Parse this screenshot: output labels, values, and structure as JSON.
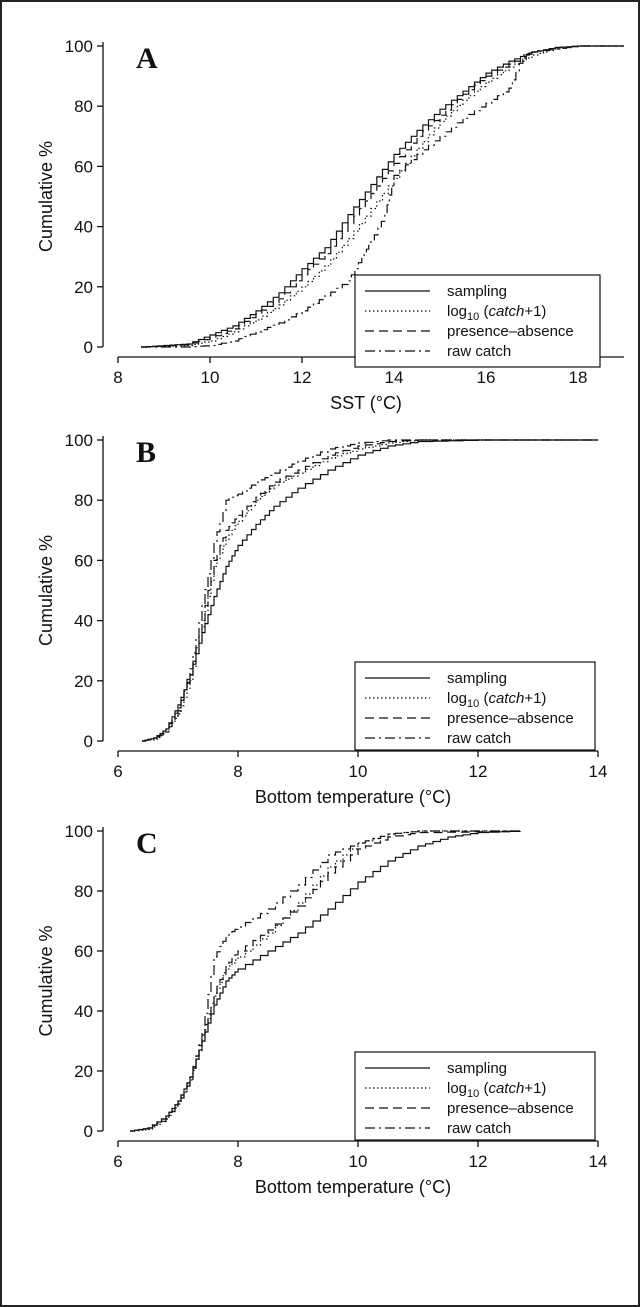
{
  "chart_data": [
    {
      "panel": "A",
      "type": "line",
      "xlabel": "SST (°C)",
      "ylabel": "Cumulative %",
      "xlim": [
        8,
        19
      ],
      "ylim": [
        0,
        100
      ],
      "xticks": [
        "8",
        "10",
        "12",
        "14",
        "16",
        "18"
      ],
      "yticks": [
        "0",
        "20",
        "40",
        "60",
        "80",
        "100"
      ],
      "legend_position": "bottom-right",
      "legend": [
        "sampling",
        "log10 (catch+1)",
        "presence–absence",
        "raw catch"
      ],
      "series": [
        {
          "name": "sampling",
          "style": "solid",
          "points": [
            [
              8.5,
              0
            ],
            [
              9,
              0.5
            ],
            [
              9.5,
              1
            ],
            [
              10,
              4
            ],
            [
              10.5,
              7
            ],
            [
              11,
              12
            ],
            [
              11.5,
              18
            ],
            [
              12,
              26
            ],
            [
              12.5,
              33
            ],
            [
              13,
              44
            ],
            [
              13.5,
              54
            ],
            [
              14,
              64
            ],
            [
              14.5,
              72
            ],
            [
              15,
              79
            ],
            [
              15.5,
              85
            ],
            [
              16,
              91
            ],
            [
              16.5,
              95
            ],
            [
              17,
              98
            ],
            [
              17.5,
              99.5
            ],
            [
              18,
              100
            ],
            [
              19,
              100
            ]
          ]
        },
        {
          "name": "log10 (catch+1)",
          "style": "dotted",
          "points": [
            [
              8.5,
              0
            ],
            [
              9,
              0.2
            ],
            [
              9.5,
              0.5
            ],
            [
              10,
              2
            ],
            [
              10.5,
              5
            ],
            [
              11,
              9
            ],
            [
              11.5,
              14
            ],
            [
              12,
              20
            ],
            [
              12.5,
              27
            ],
            [
              13,
              36
            ],
            [
              13.5,
              46
            ],
            [
              14,
              56
            ],
            [
              14.5,
              66
            ],
            [
              15,
              75
            ],
            [
              15.5,
              82
            ],
            [
              16,
              88
            ],
            [
              16.5,
              93
            ],
            [
              17,
              97
            ],
            [
              17.5,
              99
            ],
            [
              18,
              100
            ],
            [
              19,
              100
            ]
          ]
        },
        {
          "name": "presence–absence",
          "style": "dashed",
          "points": [
            [
              8.5,
              0
            ],
            [
              9,
              0.3
            ],
            [
              9.5,
              0.8
            ],
            [
              10,
              3
            ],
            [
              10.5,
              6
            ],
            [
              11,
              11
            ],
            [
              11.5,
              16
            ],
            [
              12,
              24
            ],
            [
              12.5,
              31
            ],
            [
              13,
              41
            ],
            [
              13.5,
              51
            ],
            [
              14,
              61
            ],
            [
              14.5,
              70
            ],
            [
              15,
              77
            ],
            [
              15.5,
              84
            ],
            [
              16,
              90
            ],
            [
              16.5,
              94
            ],
            [
              17,
              98
            ],
            [
              17.5,
              99.5
            ],
            [
              18,
              100
            ],
            [
              19,
              100
            ]
          ]
        },
        {
          "name": "raw catch",
          "style": "dashdot",
          "points": [
            [
              8.5,
              0
            ],
            [
              9.5,
              0
            ],
            [
              10,
              0.5
            ],
            [
              10.5,
              2
            ],
            [
              11,
              5
            ],
            [
              11.5,
              8
            ],
            [
              12,
              12
            ],
            [
              12.5,
              17
            ],
            [
              13,
              22
            ],
            [
              13.3,
              30
            ],
            [
              13.5,
              35
            ],
            [
              13.8,
              44
            ],
            [
              14,
              57
            ],
            [
              14.5,
              64
            ],
            [
              15,
              70
            ],
            [
              15.5,
              76
            ],
            [
              16,
              81
            ],
            [
              16.5,
              86
            ],
            [
              16.8,
              97
            ],
            [
              17,
              98
            ],
            [
              17.5,
              99
            ],
            [
              18,
              100
            ],
            [
              19,
              100
            ]
          ]
        }
      ]
    },
    {
      "panel": "B",
      "type": "line",
      "xlabel": "Bottom temperature (°C)",
      "ylabel": "Cumulative %",
      "xlim": [
        6,
        14
      ],
      "ylim": [
        0,
        100
      ],
      "xticks": [
        "6",
        "8",
        "10",
        "12",
        "14"
      ],
      "yticks": [
        "0",
        "20",
        "40",
        "60",
        "80",
        "100"
      ],
      "legend_position": "bottom-right",
      "legend": [
        "sampling",
        "log10 (catch+1)",
        "presence–absence",
        "raw catch"
      ],
      "series": [
        {
          "name": "sampling",
          "style": "solid",
          "points": [
            [
              6.4,
              0
            ],
            [
              6.6,
              1
            ],
            [
              6.8,
              4
            ],
            [
              7,
              12
            ],
            [
              7.2,
              22
            ],
            [
              7.4,
              36
            ],
            [
              7.6,
              48
            ],
            [
              7.8,
              58
            ],
            [
              8,
              65
            ],
            [
              8.3,
              72
            ],
            [
              8.6,
              78
            ],
            [
              9,
              84
            ],
            [
              9.5,
              90
            ],
            [
              10,
              95
            ],
            [
              10.5,
              98
            ],
            [
              11,
              99.5
            ],
            [
              12,
              100
            ],
            [
              14,
              100
            ]
          ]
        },
        {
          "name": "log10 (catch+1)",
          "style": "dotted",
          "points": [
            [
              6.4,
              0
            ],
            [
              6.6,
              0.5
            ],
            [
              6.8,
              3
            ],
            [
              7,
              9
            ],
            [
              7.2,
              20
            ],
            [
              7.4,
              38
            ],
            [
              7.6,
              58
            ],
            [
              7.8,
              67
            ],
            [
              8,
              73
            ],
            [
              8.3,
              80
            ],
            [
              8.6,
              85
            ],
            [
              9,
              89
            ],
            [
              9.5,
              94
            ],
            [
              10,
              97
            ],
            [
              10.5,
              99
            ],
            [
              11,
              100
            ],
            [
              14,
              100
            ]
          ]
        },
        {
          "name": "presence–absence",
          "style": "dashed",
          "points": [
            [
              6.4,
              0
            ],
            [
              6.6,
              1
            ],
            [
              6.8,
              4
            ],
            [
              7,
              11
            ],
            [
              7.2,
              22
            ],
            [
              7.4,
              40
            ],
            [
              7.6,
              60
            ],
            [
              7.8,
              70
            ],
            [
              8,
              75
            ],
            [
              8.3,
              81
            ],
            [
              8.6,
              86
            ],
            [
              9,
              90
            ],
            [
              9.5,
              95
            ],
            [
              10,
              98
            ],
            [
              10.5,
              99.5
            ],
            [
              11,
              100
            ],
            [
              14,
              100
            ]
          ]
        },
        {
          "name": "raw catch",
          "style": "dashdot",
          "points": [
            [
              6.4,
              0
            ],
            [
              6.6,
              1
            ],
            [
              6.8,
              3
            ],
            [
              7,
              10
            ],
            [
              7.2,
              24
            ],
            [
              7.4,
              45
            ],
            [
              7.6,
              66
            ],
            [
              7.8,
              80
            ],
            [
              8,
              82
            ],
            [
              8.3,
              86
            ],
            [
              8.6,
              89
            ],
            [
              9,
              93
            ],
            [
              9.5,
              97
            ],
            [
              10,
              99
            ],
            [
              10.5,
              100
            ],
            [
              14,
              100
            ]
          ]
        }
      ]
    },
    {
      "panel": "C",
      "type": "line",
      "xlabel": "Bottom temperature (°C)",
      "ylabel": "Cumulative %",
      "xlim": [
        6,
        14
      ],
      "ylim": [
        0,
        100
      ],
      "xticks": [
        "6",
        "8",
        "10",
        "12",
        "14"
      ],
      "yticks": [
        "0",
        "20",
        "40",
        "60",
        "80",
        "100"
      ],
      "legend_position": "bottom-right",
      "legend": [
        "sampling",
        "log10 (catch+1)",
        "presence–absence",
        "raw catch"
      ],
      "series": [
        {
          "name": "sampling",
          "style": "solid",
          "points": [
            [
              6.2,
              0
            ],
            [
              6.5,
              1
            ],
            [
              6.8,
              5
            ],
            [
              7,
              10
            ],
            [
              7.2,
              18
            ],
            [
              7.4,
              30
            ],
            [
              7.6,
              42
            ],
            [
              7.8,
              50
            ],
            [
              8,
              54
            ],
            [
              8.5,
              60
            ],
            [
              9,
              66
            ],
            [
              9.5,
              74
            ],
            [
              10,
              83
            ],
            [
              10.5,
              90
            ],
            [
              11,
              95
            ],
            [
              11.5,
              98
            ],
            [
              12,
              99.5
            ],
            [
              12.7,
              100
            ]
          ]
        },
        {
          "name": "log10 (catch+1)",
          "style": "dotted",
          "points": [
            [
              6.2,
              0
            ],
            [
              6.5,
              0.5
            ],
            [
              6.8,
              4
            ],
            [
              7,
              9
            ],
            [
              7.2,
              17
            ],
            [
              7.4,
              30
            ],
            [
              7.6,
              45
            ],
            [
              7.8,
              54
            ],
            [
              8,
              58
            ],
            [
              8.5,
              66
            ],
            [
              9,
              76
            ],
            [
              9.5,
              88
            ],
            [
              10,
              96
            ],
            [
              10.5,
              99
            ],
            [
              11,
              100
            ],
            [
              12.7,
              100
            ]
          ]
        },
        {
          "name": "presence–absence",
          "style": "dashed",
          "points": [
            [
              6.2,
              0
            ],
            [
              6.5,
              1
            ],
            [
              6.8,
              5
            ],
            [
              7,
              10
            ],
            [
              7.2,
              18
            ],
            [
              7.4,
              32
            ],
            [
              7.6,
              46
            ],
            [
              7.8,
              55
            ],
            [
              8,
              60
            ],
            [
              8.5,
              67
            ],
            [
              9,
              75
            ],
            [
              9.5,
              86
            ],
            [
              10,
              94
            ],
            [
              10.5,
              98
            ],
            [
              11,
              99.5
            ],
            [
              12.7,
              100
            ]
          ]
        },
        {
          "name": "raw catch",
          "style": "dashdot",
          "points": [
            [
              6.2,
              0
            ],
            [
              6.5,
              1
            ],
            [
              6.8,
              4
            ],
            [
              7,
              9
            ],
            [
              7.2,
              17
            ],
            [
              7.4,
              33
            ],
            [
              7.6,
              58
            ],
            [
              7.8,
              65
            ],
            [
              8,
              68
            ],
            [
              8.5,
              74
            ],
            [
              9,
              82
            ],
            [
              9.5,
              92
            ],
            [
              10,
              96
            ],
            [
              10.5,
              99
            ],
            [
              11,
              100
            ],
            [
              12.7,
              100
            ]
          ]
        }
      ]
    }
  ]
}
